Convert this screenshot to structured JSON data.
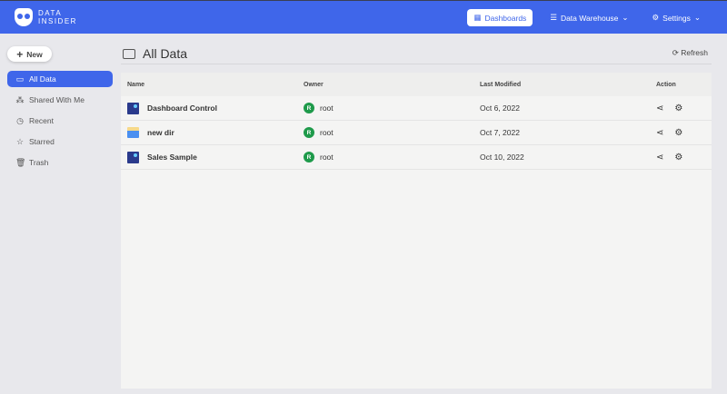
{
  "header": {
    "logo_line1": "DATA",
    "logo_line2": "INSIDER",
    "nav": [
      {
        "label": "Dashboards",
        "icon": "dashboard-icon"
      },
      {
        "label": "Data Warehouse",
        "icon": "database-icon"
      },
      {
        "label": "Settings",
        "icon": "gear-icon"
      }
    ]
  },
  "sidebar": {
    "new_label": "New",
    "items": [
      {
        "label": "All Data",
        "icon": "folder-icon"
      },
      {
        "label": "Shared With Me",
        "icon": "share-icon"
      },
      {
        "label": "Recent",
        "icon": "clock-icon"
      },
      {
        "label": "Starred",
        "icon": "star-icon"
      },
      {
        "label": "Trash",
        "icon": "trash-icon"
      }
    ]
  },
  "main": {
    "title": "All Data",
    "refresh_label": "Refresh",
    "columns": [
      "Name",
      "Owner",
      "Last Modified",
      "Action"
    ],
    "rows": [
      {
        "name": "Dashboard Control",
        "type": "dashboard",
        "owner_initial": "R",
        "owner": "root",
        "modified": "Oct 6, 2022"
      },
      {
        "name": "new dir",
        "type": "directory",
        "owner_initial": "R",
        "owner": "root",
        "modified": "Oct 7, 2022"
      },
      {
        "name": "Sales Sample",
        "type": "dashboard",
        "owner_initial": "R",
        "owner": "root",
        "modified": "Oct 10, 2022"
      }
    ]
  },
  "colors": {
    "accent": "#3f66ea",
    "owner_avatar": "#1e9a4a"
  }
}
